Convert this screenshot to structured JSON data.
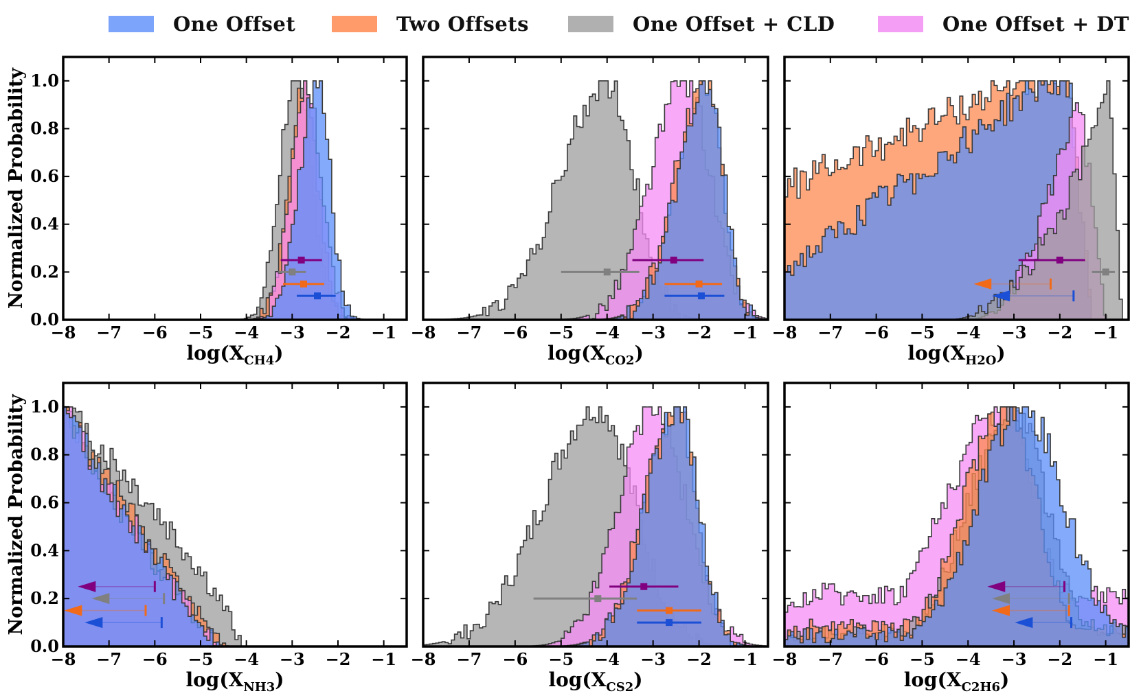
{
  "legend": [
    {
      "label": "One Offset",
      "color": "#5b8ff9"
    },
    {
      "label": "Two Offsets",
      "color": "#ff8a50"
    },
    {
      "label": "One Offset + CLD",
      "color": "#9e9e9e"
    },
    {
      "label": "One Offset + DT",
      "color": "#f58ef5"
    }
  ],
  "colors": {
    "one_offset": "#5b8ff9",
    "two_offsets": "#ff8a50",
    "cld": "#9e9e9e",
    "dt": "#f58ef5",
    "err_one_offset": "#1a4fd6",
    "err_two_offsets": "#f06a1a",
    "err_cld": "#808080",
    "err_dt": "#800080"
  },
  "chart_data": [
    {
      "type": "histogram",
      "xlabel": "log(X",
      "xlabel_sub": "CH4",
      "ylabel": "Normalized Probability",
      "xlim": [
        -8,
        -0.5
      ],
      "ylim": [
        0,
        1.1
      ],
      "xticks": [
        "−8",
        "−7",
        "−6",
        "−5",
        "−4",
        "−3",
        "−2",
        "−1"
      ],
      "yticks": [
        "0.0",
        "0.2",
        "0.4",
        "0.6",
        "0.8",
        "1.0"
      ],
      "series": [
        {
          "key": "cld",
          "kind": "gauss",
          "mu": -2.95,
          "sl": 0.33,
          "sr": 0.38
        },
        {
          "key": "two_offsets",
          "kind": "gauss",
          "mu": -2.75,
          "sl": 0.33,
          "sr": 0.3
        },
        {
          "key": "dt",
          "kind": "gauss",
          "mu": -2.7,
          "sl": 0.33,
          "sr": 0.33
        },
        {
          "key": "one_offset",
          "kind": "gauss",
          "mu": -2.45,
          "sl": 0.38,
          "sr": 0.28
        }
      ],
      "markers": [
        {
          "key": "dt",
          "type": "err",
          "y": 0.25,
          "x": -2.8,
          "lo": -3.25,
          "hi": -2.35
        },
        {
          "key": "cld",
          "type": "err",
          "y": 0.2,
          "x": -3.0,
          "lo": -3.3,
          "hi": -2.7
        },
        {
          "key": "two_offsets",
          "type": "err",
          "y": 0.15,
          "x": -2.75,
          "lo": -3.2,
          "hi": -2.3
        },
        {
          "key": "one_offset",
          "type": "err",
          "y": 0.1,
          "x": -2.45,
          "lo": -2.9,
          "hi": -2.05
        }
      ]
    },
    {
      "type": "histogram",
      "xlabel": "log(X",
      "xlabel_sub": "CO2",
      "ylabel": "",
      "xlim": [
        -8,
        -0.5
      ],
      "ylim": [
        0,
        1.1
      ],
      "xticks": [
        "−8",
        "−7",
        "−6",
        "−5",
        "−4",
        "−3",
        "−2",
        "−1"
      ],
      "yticks": [],
      "series": [
        {
          "key": "cld",
          "kind": "gauss",
          "mu": -4.0,
          "sl": 1.0,
          "sr": 0.6
        },
        {
          "key": "dt",
          "kind": "gauss",
          "mu": -2.3,
          "sl": 0.75,
          "sr": 0.55
        },
        {
          "key": "two_offsets",
          "kind": "gauss",
          "mu": -1.85,
          "sl": 0.65,
          "sr": 0.35
        },
        {
          "key": "one_offset",
          "kind": "gauss",
          "mu": -1.8,
          "sl": 0.65,
          "sr": 0.35
        }
      ],
      "markers": [
        {
          "key": "dt",
          "type": "err",
          "y": 0.25,
          "x": -2.55,
          "lo": -3.45,
          "hi": -1.9
        },
        {
          "key": "cld",
          "type": "err",
          "y": 0.2,
          "x": -4.0,
          "lo": -5.0,
          "hi": -3.3
        },
        {
          "key": "two_offsets",
          "type": "err",
          "y": 0.15,
          "x": -2.0,
          "lo": -2.75,
          "hi": -1.5
        },
        {
          "key": "one_offset",
          "type": "err",
          "y": 0.1,
          "x": -1.95,
          "lo": -2.75,
          "hi": -1.45
        }
      ]
    },
    {
      "type": "histogram",
      "xlabel": "log(X",
      "xlabel_sub": "H2O",
      "ylabel": "",
      "xlim": [
        -8,
        -0.5
      ],
      "ylim": [
        0,
        1.1
      ],
      "xticks": [
        "−8",
        "−7",
        "−6",
        "−5",
        "−4",
        "−3",
        "−2",
        "−1"
      ],
      "yticks": [],
      "series": [
        {
          "key": "two_offsets",
          "kind": "ramp",
          "p0": [
            -8,
            0.55
          ],
          "p1": [
            -4,
            0.9
          ],
          "cut": -1.8,
          "end": -1.3
        },
        {
          "key": "one_offset",
          "kind": "ramp",
          "p0": [
            -8,
            0.2
          ],
          "p1": [
            -3,
            0.9
          ],
          "cut": -1.8,
          "end": -1.3
        },
        {
          "key": "dt",
          "kind": "rise",
          "start": -4,
          "peak": -1.6,
          "end": -1.0
        },
        {
          "key": "cld",
          "kind": "rise",
          "start": -4.5,
          "peak": -0.9,
          "end": -0.65
        }
      ],
      "markers": [
        {
          "key": "dt",
          "type": "err",
          "y": 0.25,
          "x": -2.0,
          "lo": -2.9,
          "hi": -1.45
        },
        {
          "key": "cld",
          "type": "err",
          "y": 0.2,
          "x": -1.0,
          "lo": -1.3,
          "hi": -0.8
        },
        {
          "key": "two_offsets",
          "type": "upper",
          "y": 0.15,
          "x": -2.2,
          "arrow": -3.7
        },
        {
          "key": "one_offset",
          "type": "upper",
          "y": 0.1,
          "x": -1.7,
          "arrow": -3.3
        }
      ]
    },
    {
      "type": "histogram",
      "xlabel": "log(X",
      "xlabel_sub": "NH3",
      "ylabel": "Normalized Probability",
      "xlim": [
        -8,
        -0.5
      ],
      "ylim": [
        0,
        1.1
      ],
      "xticks": [
        "−8",
        "−7",
        "−6",
        "−5",
        "−4",
        "−3",
        "−2",
        "−1"
      ],
      "yticks": [
        "0.0",
        "0.2",
        "0.4",
        "0.6",
        "0.8",
        "1.0"
      ],
      "series": [
        {
          "key": "cld",
          "kind": "decay",
          "zero": -4.1,
          "shape": 0.8
        },
        {
          "key": "two_offsets",
          "kind": "decay",
          "zero": -4.4,
          "shape": 1.15
        },
        {
          "key": "dt",
          "kind": "decay",
          "zero": -4.5,
          "shape": 1.2
        },
        {
          "key": "one_offset",
          "kind": "decay",
          "zero": -4.5,
          "shape": 1.2
        }
      ],
      "markers": [
        {
          "key": "dt",
          "type": "upper",
          "y": 0.25,
          "x": -6.0,
          "arrow": -7.5
        },
        {
          "key": "cld",
          "type": "upper",
          "y": 0.2,
          "x": -5.8,
          "arrow": -7.2
        },
        {
          "key": "two_offsets",
          "type": "upper",
          "y": 0.15,
          "x": -6.2,
          "arrow": -7.8
        },
        {
          "key": "one_offset",
          "type": "upper",
          "y": 0.1,
          "x": -5.85,
          "arrow": -7.35
        }
      ]
    },
    {
      "type": "histogram",
      "xlabel": "log(X",
      "xlabel_sub": "CS2",
      "ylabel": "",
      "xlim": [
        -8,
        -0.5
      ],
      "ylim": [
        0,
        1.1
      ],
      "xticks": [
        "−8",
        "−7",
        "−6",
        "−5",
        "−4",
        "−3",
        "−2",
        "−1"
      ],
      "yticks": [],
      "series": [
        {
          "key": "cld",
          "kind": "gauss",
          "mu": -4.2,
          "sl": 1.2,
          "sr": 0.8
        },
        {
          "key": "dt",
          "kind": "gauss",
          "mu": -3.0,
          "sl": 0.75,
          "sr": 0.7
        },
        {
          "key": "two_offsets",
          "kind": "gauss",
          "mu": -2.5,
          "sl": 0.7,
          "sr": 0.45
        },
        {
          "key": "one_offset",
          "kind": "gauss",
          "mu": -2.45,
          "sl": 0.7,
          "sr": 0.45
        }
      ],
      "markers": [
        {
          "key": "dt",
          "type": "err",
          "y": 0.25,
          "x": -3.2,
          "lo": -3.95,
          "hi": -2.45
        },
        {
          "key": "cld",
          "type": "err",
          "y": 0.2,
          "x": -4.2,
          "lo": -5.6,
          "hi": -3.35
        },
        {
          "key": "two_offsets",
          "type": "err",
          "y": 0.15,
          "x": -2.65,
          "lo": -3.35,
          "hi": -1.95
        },
        {
          "key": "one_offset",
          "type": "err",
          "y": 0.1,
          "x": -2.65,
          "lo": -3.35,
          "hi": -1.95
        }
      ]
    },
    {
      "type": "histogram",
      "xlabel": "log(X",
      "xlabel_sub": "C2H6",
      "ylabel": "",
      "xlim": [
        -8,
        -0.5
      ],
      "ylim": [
        0,
        1.1
      ],
      "xticks": [
        "−8",
        "−7",
        "−6",
        "−5",
        "−4",
        "−3",
        "−2",
        "−1"
      ],
      "yticks": [],
      "series": [
        {
          "key": "dt",
          "kind": "gauss",
          "mu": -3.2,
          "sl": 1.3,
          "sr": 0.7,
          "floor": 0.22
        },
        {
          "key": "cld",
          "kind": "gauss",
          "mu": -3.0,
          "sl": 1.0,
          "sr": 0.7,
          "floor": 0.06
        },
        {
          "key": "two_offsets",
          "kind": "gauss",
          "mu": -3.2,
          "sl": 0.9,
          "sr": 0.7,
          "floor": 0.08
        },
        {
          "key": "one_offset",
          "kind": "gauss",
          "mu": -2.8,
          "sl": 1.0,
          "sr": 0.9,
          "floor": 0.05
        }
      ],
      "markers": [
        {
          "key": "dt",
          "type": "upper",
          "y": 0.25,
          "x": -1.9,
          "arrow": -3.4
        },
        {
          "key": "cld",
          "type": "upper",
          "y": 0.2,
          "x": -1.8,
          "arrow": -3.3
        },
        {
          "key": "two_offsets",
          "type": "upper",
          "y": 0.15,
          "x": -1.8,
          "arrow": -3.3
        },
        {
          "key": "one_offset",
          "type": "upper",
          "y": 0.1,
          "x": -1.75,
          "arrow": -2.8
        }
      ]
    }
  ]
}
